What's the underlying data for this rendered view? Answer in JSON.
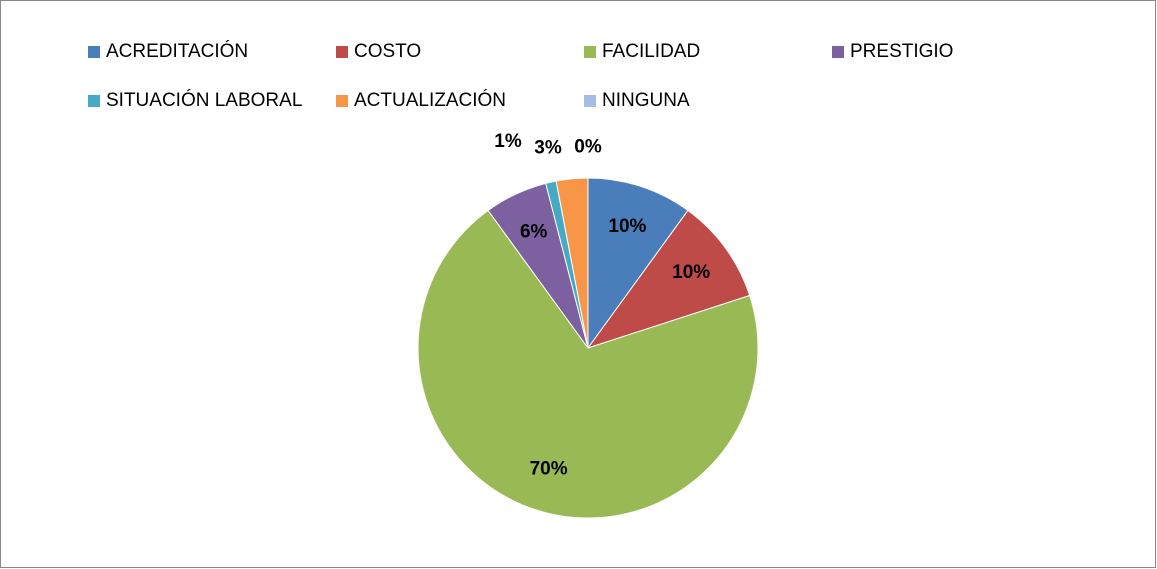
{
  "chart_data": {
    "type": "pie",
    "categories": [
      "ACREDITACIÓN",
      "COSTO",
      "FACILIDAD",
      "PRESTIGIO",
      "SITUACIÓN LABORAL",
      "ACTUALIZACIÓN",
      "NINGUNA"
    ],
    "values": [
      10,
      10,
      70,
      6,
      1,
      3,
      0
    ],
    "value_labels": [
      "10%",
      "10%",
      "70%",
      "6%",
      "1%",
      "3%",
      "0%"
    ],
    "colors": [
      "#4a7ebb",
      "#be4b48",
      "#98b954",
      "#7d60a0",
      "#46aac5",
      "#f79646",
      "#a5bde0"
    ],
    "legend": "top"
  }
}
